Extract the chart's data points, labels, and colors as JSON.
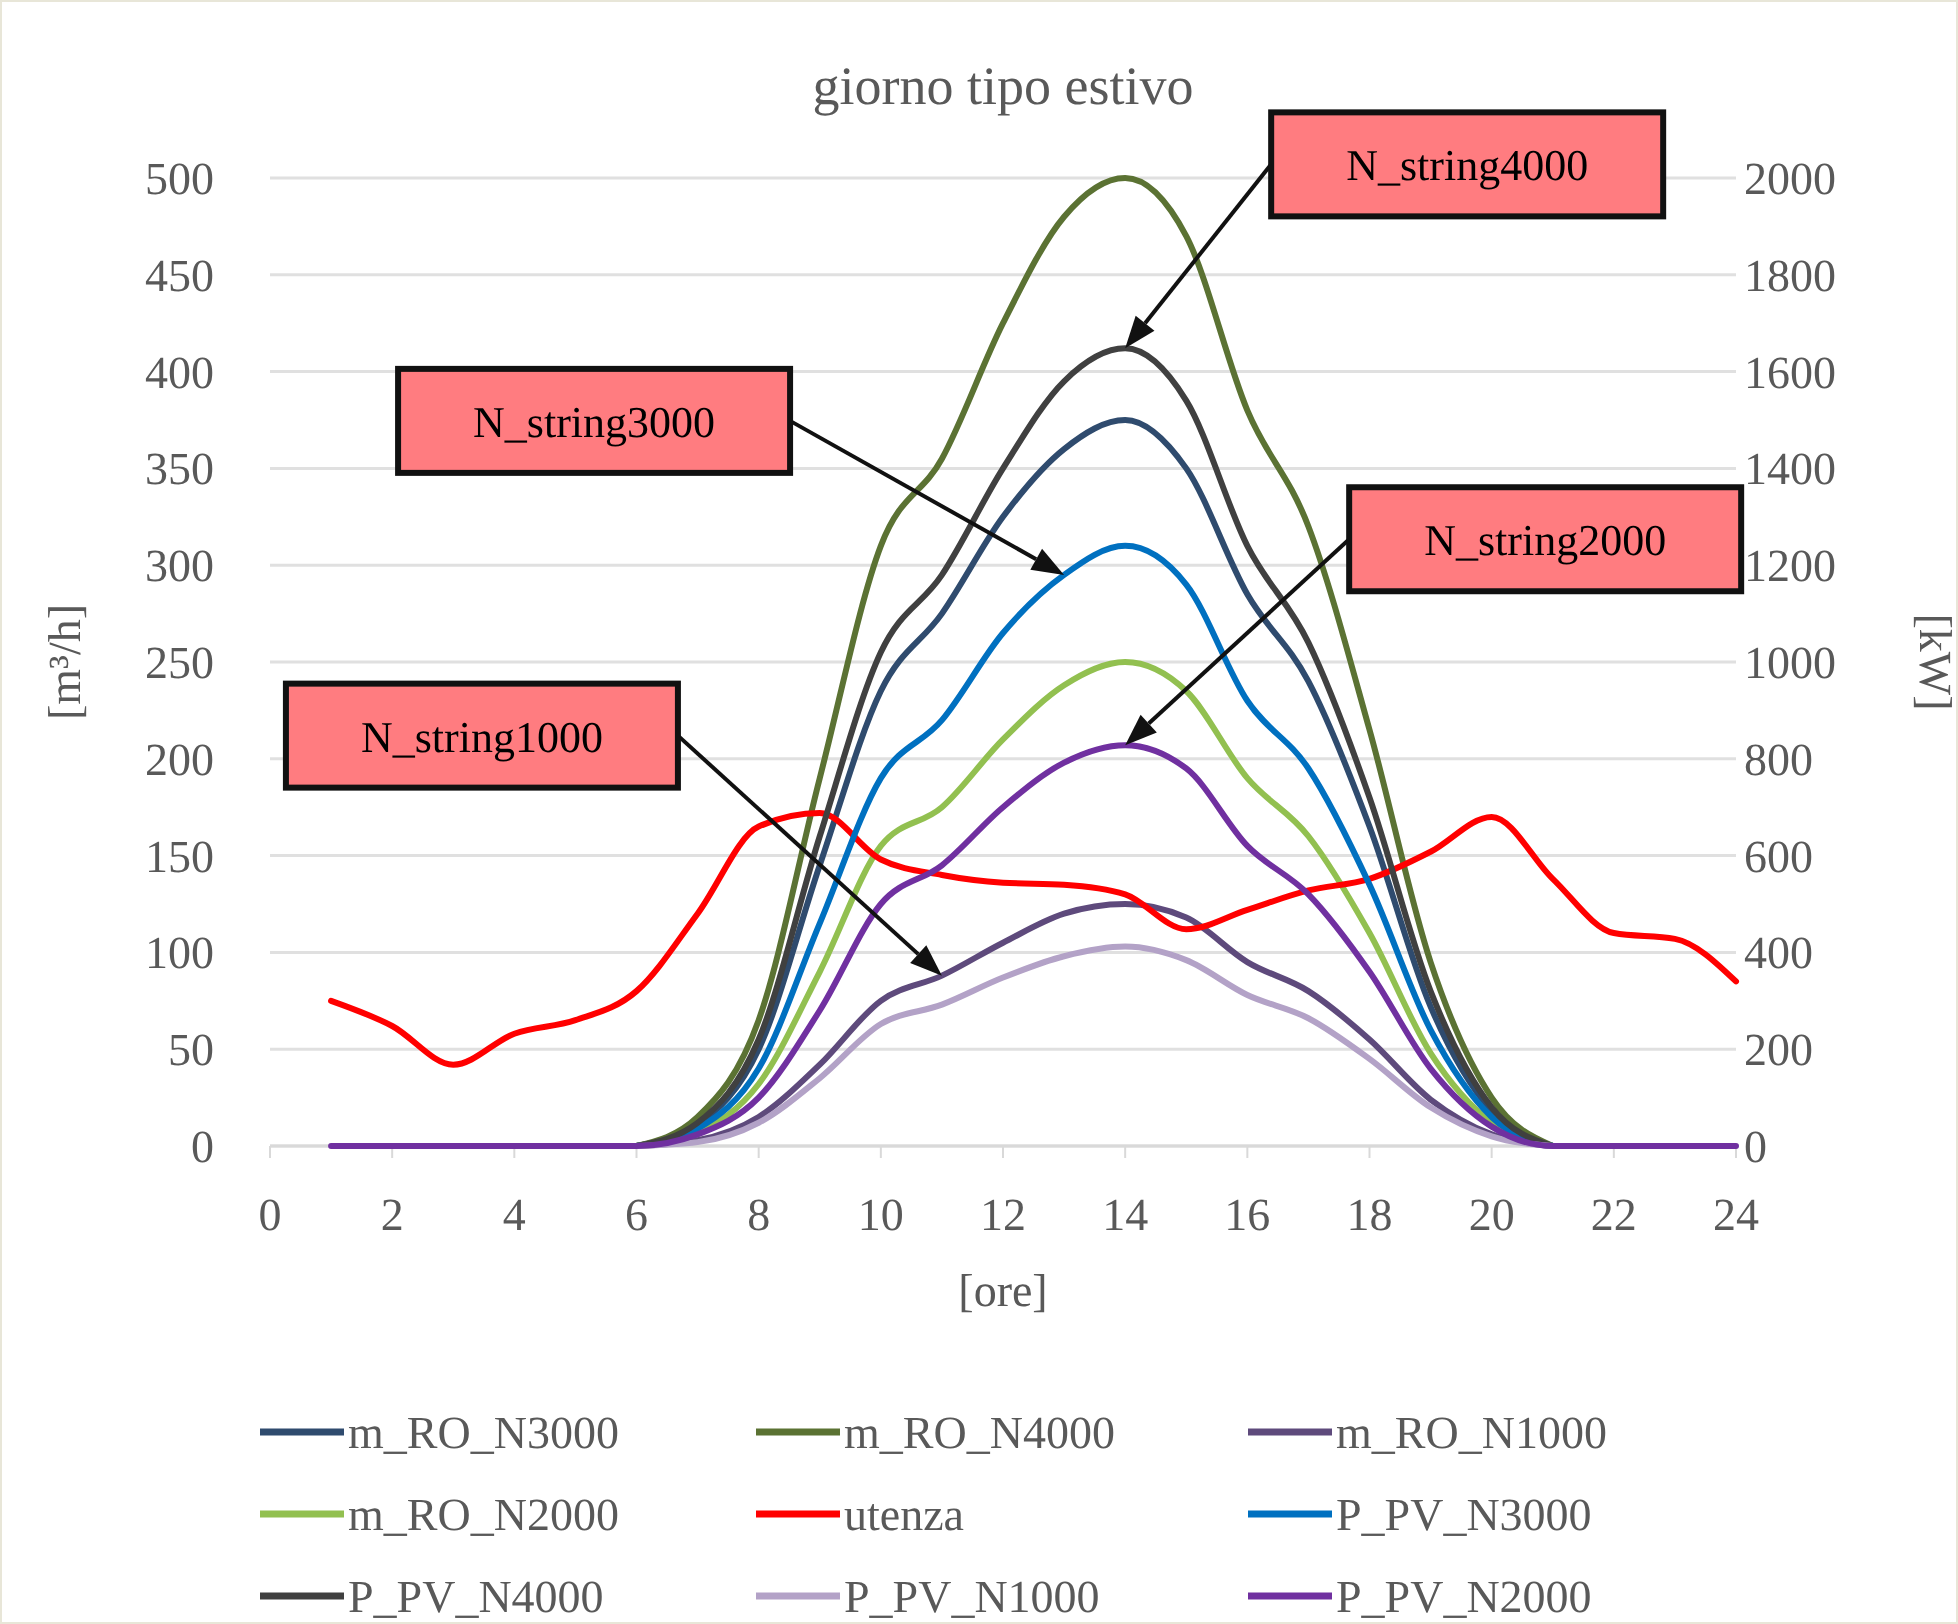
{
  "chart_data": {
    "type": "line",
    "title": "giorno tipo estivo",
    "xlabel": "[ore]",
    "ylabel": "[m³/h]",
    "y2label": "[kW]",
    "x": [
      1,
      2,
      3,
      4,
      5,
      6,
      7,
      8,
      9,
      10,
      11,
      12,
      13,
      14,
      15,
      16,
      17,
      18,
      19,
      20,
      21,
      22,
      23,
      24
    ],
    "xlim": [
      0,
      24
    ],
    "xticks": [
      0,
      2,
      4,
      6,
      8,
      10,
      12,
      14,
      16,
      18,
      20,
      22,
      24
    ],
    "ylim": [
      0,
      500
    ],
    "yticks": [
      0,
      50,
      100,
      150,
      200,
      250,
      300,
      350,
      400,
      450,
      500
    ],
    "y2lim": [
      0,
      2000
    ],
    "y2ticks": [
      0,
      200,
      400,
      600,
      800,
      1000,
      1200,
      1400,
      1600,
      1800,
      2000
    ],
    "grid": "y",
    "legend": "bottom",
    "line_style": "solid",
    "marker": "none",
    "series": [
      {
        "name": "m_RO_N3000",
        "color": "#2f4b6e",
        "values": [
          null,
          null,
          null,
          null,
          null,
          0,
          11,
          50,
          145,
          235,
          275,
          325,
          360,
          375,
          350,
          285,
          240,
          165,
          72,
          18,
          0,
          null,
          null,
          null
        ]
      },
      {
        "name": "m_RO_N4000",
        "color": "#5b7233",
        "values": [
          null,
          null,
          null,
          null,
          null,
          0,
          15,
          65,
          190,
          310,
          355,
          425,
          480,
          500,
          470,
          380,
          320,
          215,
          95,
          25,
          0,
          null,
          null,
          null
        ]
      },
      {
        "name": "m_RO_N1000",
        "color": "#5e4a7c",
        "values": [
          null,
          null,
          null,
          null,
          null,
          0,
          3,
          15,
          42,
          75,
          88,
          105,
          120,
          125,
          118,
          95,
          80,
          55,
          24,
          6,
          0,
          null,
          null,
          null
        ]
      },
      {
        "name": "m_RO_N2000",
        "color": "#92c050",
        "values": [
          null,
          null,
          null,
          null,
          null,
          0,
          7,
          32,
          90,
          155,
          175,
          210,
          238,
          250,
          235,
          190,
          160,
          110,
          48,
          12,
          0,
          null,
          null,
          null
        ]
      },
      {
        "name": "utenza",
        "color": "#ff0000",
        "values": [
          75,
          62,
          42,
          58,
          65,
          80,
          120,
          165,
          172,
          148,
          140,
          136,
          135,
          130,
          112,
          122,
          132,
          138,
          152,
          170,
          138,
          110,
          107,
          85
        ]
      },
      {
        "name": "P_PV_N3000",
        "color": "#0070c0",
        "axis": "y2",
        "values": [
          null,
          null,
          null,
          null,
          null,
          0,
          36,
          160,
          460,
          760,
          880,
          1060,
          1180,
          1240,
          1160,
          920,
          780,
          540,
          240,
          60,
          0,
          null,
          null,
          null
        ]
      },
      {
        "name": "P_PV_N4000",
        "color": "#404040",
        "axis": "y2",
        "values": [
          null,
          null,
          null,
          null,
          null,
          0,
          48,
          220,
          640,
          1020,
          1180,
          1400,
          1580,
          1648,
          1540,
          1240,
          1040,
          720,
          320,
          80,
          0,
          null,
          null,
          null
        ]
      },
      {
        "name": "P_PV_N1000",
        "color": "#b3a2c7",
        "axis": "y2",
        "values": [
          null,
          null,
          null,
          null,
          null,
          0,
          8,
          48,
          140,
          252,
          292,
          348,
          392,
          412,
          384,
          312,
          264,
          180,
          80,
          20,
          0,
          null,
          null,
          null
        ]
      },
      {
        "name": "P_PV_N2000",
        "color": "#7030a0",
        "axis": "y2",
        "values": [
          0,
          0,
          0,
          0,
          0,
          0,
          24,
          100,
          280,
          500,
          580,
          700,
          792,
          828,
          780,
          620,
          520,
          360,
          160,
          40,
          0,
          0,
          0,
          0
        ]
      }
    ],
    "annotations": [
      "N_string4000",
      "N_string3000",
      "N_string2000",
      "N_string1000"
    ]
  }
}
